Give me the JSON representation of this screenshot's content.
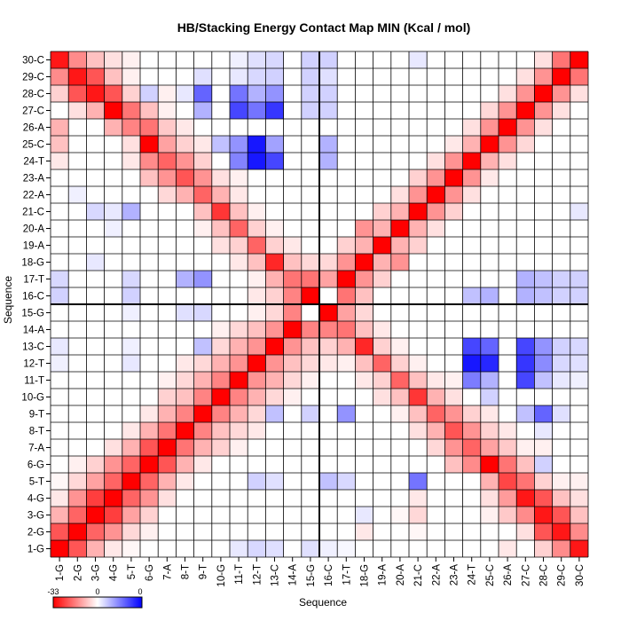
{
  "chart_data": {
    "type": "heatmap",
    "title": "HB/Stacking Energy Contact Map MIN (Kcal / mol)",
    "xlabel": "Sequence",
    "ylabel": "Sequence",
    "categories": [
      "1-G",
      "2-G",
      "3-G",
      "4-G",
      "5-T",
      "6-G",
      "7-A",
      "8-T",
      "9-T",
      "10-G",
      "11-T",
      "12-T",
      "13-C",
      "14-A",
      "15-G",
      "16-C",
      "17-T",
      "18-G",
      "19-A",
      "20-A",
      "21-C",
      "22-A",
      "23-A",
      "24-T",
      "25-C",
      "26-A",
      "27-C",
      "28-C",
      "29-C",
      "30-C"
    ],
    "colorbar": {
      "min": -33,
      "max": 0,
      "min_label": "-33",
      "mid_label": "0",
      "max_label": "0",
      "colors": [
        "#ff0000",
        "#ffffff",
        "#0000ff"
      ]
    },
    "strand_divider_after": 15,
    "matrix": [
      [
        -33,
        -22,
        -10,
        -3,
        -1,
        0,
        0,
        0,
        0,
        0,
        3,
        5,
        4,
        0,
        4,
        2,
        1,
        0,
        0,
        0,
        0,
        0,
        0,
        0,
        0,
        -3,
        0,
        -6,
        -15,
        -30
      ],
      [
        -22,
        -33,
        -20,
        -14,
        -5,
        -2,
        0,
        0,
        0,
        0,
        0,
        0,
        0,
        0,
        0,
        0,
        0,
        -3,
        0,
        0,
        -1,
        0,
        0,
        0,
        0,
        0,
        -4,
        -22,
        -30,
        -15
      ],
      [
        -10,
        -20,
        -33,
        -25,
        -12,
        -6,
        0,
        0,
        0,
        0,
        0,
        0,
        0,
        0,
        0,
        0,
        0,
        3,
        0,
        -1,
        -5,
        0,
        0,
        0,
        -2,
        -7,
        -15,
        -30,
        -22,
        -8
      ],
      [
        -3,
        -14,
        -25,
        -33,
        -20,
        -14,
        -4,
        0,
        0,
        0,
        0,
        0,
        0,
        0,
        0,
        0,
        0,
        0,
        0,
        0,
        -3,
        0,
        0,
        0,
        -4,
        -13,
        -30,
        -22,
        -8,
        -4
      ],
      [
        -1,
        -5,
        -12,
        -20,
        -33,
        -20,
        -10,
        -3,
        0,
        0,
        0,
        6,
        4,
        0,
        0,
        8,
        5,
        0,
        0,
        0,
        18,
        0,
        0,
        0,
        -10,
        -24,
        -18,
        -6,
        -2,
        -2
      ],
      [
        0,
        -2,
        -6,
        -14,
        -20,
        -33,
        -22,
        -10,
        -3,
        0,
        0,
        0,
        0,
        0,
        0,
        0,
        0,
        0,
        0,
        0,
        0,
        0,
        -8,
        -15,
        -33,
        -18,
        -8,
        6,
        0,
        0
      ],
      [
        0,
        0,
        0,
        -4,
        -10,
        -22,
        -33,
        -18,
        -10,
        -6,
        -2,
        0,
        0,
        0,
        0,
        0,
        0,
        0,
        0,
        0,
        0,
        -5,
        -14,
        -20,
        -12,
        -7,
        -2,
        -2,
        0,
        0
      ],
      [
        0,
        0,
        0,
        0,
        -3,
        -10,
        -18,
        -33,
        -16,
        -8,
        -5,
        -3,
        0,
        0,
        0,
        0,
        0,
        0,
        0,
        0,
        -4,
        -10,
        -22,
        -14,
        -6,
        -3,
        0,
        3,
        0,
        0
      ],
      [
        0,
        0,
        0,
        0,
        0,
        -3,
        -10,
        -16,
        -33,
        -16,
        -10,
        -5,
        8,
        0,
        6,
        0,
        14,
        0,
        0,
        -2,
        -8,
        -20,
        -14,
        -6,
        -3,
        0,
        8,
        20,
        4,
        0
      ],
      [
        0,
        0,
        0,
        0,
        0,
        0,
        -6,
        -8,
        -16,
        -33,
        -16,
        -10,
        -5,
        -2,
        0,
        0,
        0,
        0,
        -4,
        -8,
        -26,
        -10,
        -4,
        0,
        6,
        0,
        0,
        0,
        0,
        0
      ],
      [
        0,
        0,
        0,
        0,
        0,
        0,
        -2,
        -5,
        -10,
        -16,
        -33,
        -14,
        -10,
        -5,
        -2,
        0,
        0,
        -3,
        -6,
        -20,
        -8,
        -3,
        -2,
        17,
        10,
        0,
        24,
        8,
        3,
        2
      ],
      [
        2,
        0,
        0,
        0,
        3,
        0,
        0,
        -3,
        -5,
        -10,
        -14,
        -33,
        -14,
        -8,
        -5,
        -3,
        -2,
        -8,
        -20,
        -6,
        -2,
        0,
        0,
        30,
        28,
        0,
        26,
        15,
        5,
        4
      ],
      [
        3,
        0,
        0,
        0,
        2,
        0,
        0,
        0,
        8,
        -5,
        -10,
        -14,
        -33,
        -14,
        -8,
        -6,
        -10,
        -28,
        -6,
        -2,
        0,
        0,
        0,
        24,
        20,
        0,
        24,
        14,
        6,
        5
      ],
      [
        0,
        0,
        0,
        0,
        0,
        0,
        0,
        0,
        0,
        -2,
        -5,
        -8,
        -14,
        -33,
        -16,
        -16,
        -18,
        -8,
        -3,
        0,
        0,
        0,
        0,
        0,
        0,
        0,
        0,
        0,
        0,
        0
      ],
      [
        0,
        0,
        0,
        0,
        2,
        0,
        0,
        4,
        5,
        0,
        0,
        -2,
        -5,
        -16,
        0,
        -33,
        -12,
        -5,
        0,
        0,
        0,
        0,
        0,
        0,
        0,
        0,
        0,
        0,
        0,
        0
      ],
      [
        6,
        0,
        0,
        0,
        6,
        0,
        0,
        0,
        0,
        0,
        0,
        -3,
        -6,
        -16,
        -33,
        0,
        -18,
        -8,
        0,
        0,
        0,
        0,
        0,
        8,
        10,
        0,
        10,
        8,
        6,
        6
      ],
      [
        5,
        0,
        0,
        0,
        5,
        0,
        0,
        10,
        14,
        0,
        0,
        -2,
        -10,
        -18,
        -18,
        -12,
        -33,
        -14,
        -6,
        0,
        0,
        0,
        0,
        0,
        0,
        0,
        10,
        8,
        6,
        6
      ],
      [
        0,
        0,
        3,
        0,
        0,
        0,
        0,
        0,
        0,
        0,
        -3,
        -8,
        -28,
        -8,
        -5,
        -5,
        -14,
        -33,
        -10,
        -14,
        0,
        0,
        0,
        0,
        0,
        0,
        0,
        0,
        0,
        0
      ],
      [
        0,
        0,
        0,
        0,
        0,
        0,
        0,
        0,
        0,
        -4,
        -6,
        -20,
        -6,
        -3,
        0,
        0,
        -6,
        -10,
        -33,
        -10,
        -6,
        0,
        0,
        0,
        0,
        0,
        0,
        0,
        0,
        0
      ],
      [
        0,
        0,
        0,
        2,
        0,
        0,
        0,
        0,
        -2,
        -8,
        -20,
        -6,
        -2,
        0,
        0,
        0,
        0,
        -14,
        -10,
        -33,
        -10,
        -4,
        0,
        0,
        0,
        0,
        0,
        0,
        0,
        0
      ],
      [
        0,
        0,
        5,
        3,
        10,
        0,
        0,
        0,
        -8,
        -26,
        -8,
        -2,
        0,
        0,
        0,
        0,
        0,
        0,
        -6,
        -10,
        -33,
        -14,
        -6,
        0,
        0,
        0,
        0,
        0,
        0,
        3
      ],
      [
        0,
        2,
        0,
        0,
        0,
        0,
        -5,
        -10,
        -20,
        -10,
        -3,
        0,
        0,
        0,
        0,
        0,
        0,
        0,
        0,
        -4,
        -14,
        -33,
        -14,
        -4,
        0,
        0,
        0,
        0,
        0,
        0
      ],
      [
        0,
        0,
        0,
        0,
        0,
        -8,
        -14,
        -22,
        -14,
        -4,
        -2,
        0,
        0,
        0,
        0,
        0,
        0,
        0,
        0,
        0,
        -6,
        -14,
        -33,
        -14,
        -3,
        0,
        0,
        0,
        0,
        0
      ],
      [
        -3,
        0,
        0,
        0,
        -3,
        -15,
        -20,
        -14,
        -6,
        0,
        16,
        30,
        24,
        0,
        0,
        10,
        0,
        0,
        0,
        0,
        0,
        -4,
        -14,
        -33,
        -10,
        -4,
        0,
        0,
        0,
        0
      ],
      [
        -8,
        0,
        0,
        0,
        -4,
        -33,
        -12,
        -6,
        -3,
        8,
        14,
        30,
        12,
        0,
        0,
        10,
        0,
        0,
        0,
        0,
        0,
        0,
        -3,
        -10,
        -33,
        -14,
        -5,
        0,
        0,
        0
      ],
      [
        -10,
        0,
        0,
        -10,
        -16,
        -18,
        -7,
        -3,
        0,
        0,
        0,
        0,
        0,
        0,
        0,
        0,
        0,
        0,
        0,
        0,
        0,
        0,
        0,
        -4,
        -14,
        -33,
        -14,
        -4,
        0,
        0
      ],
      [
        0,
        -4,
        -10,
        -33,
        -18,
        -8,
        -2,
        0,
        10,
        0,
        24,
        18,
        26,
        0,
        6,
        6,
        0,
        0,
        0,
        0,
        0,
        0,
        0,
        0,
        -5,
        -14,
        -33,
        -14,
        -4,
        0
      ],
      [
        -6,
        -22,
        -30,
        -22,
        -6,
        6,
        -2,
        3,
        20,
        0,
        18,
        10,
        14,
        0,
        6,
        6,
        0,
        0,
        0,
        0,
        0,
        0,
        0,
        0,
        0,
        -4,
        -14,
        -33,
        -14,
        -4
      ],
      [
        -15,
        -30,
        -22,
        -8,
        -2,
        0,
        0,
        0,
        4,
        0,
        3,
        5,
        6,
        0,
        6,
        4,
        0,
        0,
        0,
        0,
        0,
        0,
        0,
        0,
        0,
        0,
        -4,
        -14,
        -33,
        -18
      ],
      [
        -30,
        -15,
        -8,
        -4,
        -2,
        0,
        0,
        0,
        0,
        0,
        2,
        4,
        5,
        0,
        6,
        6,
        0,
        0,
        0,
        0,
        3,
        0,
        0,
        0,
        0,
        0,
        0,
        -4,
        -18,
        -33
      ]
    ]
  }
}
